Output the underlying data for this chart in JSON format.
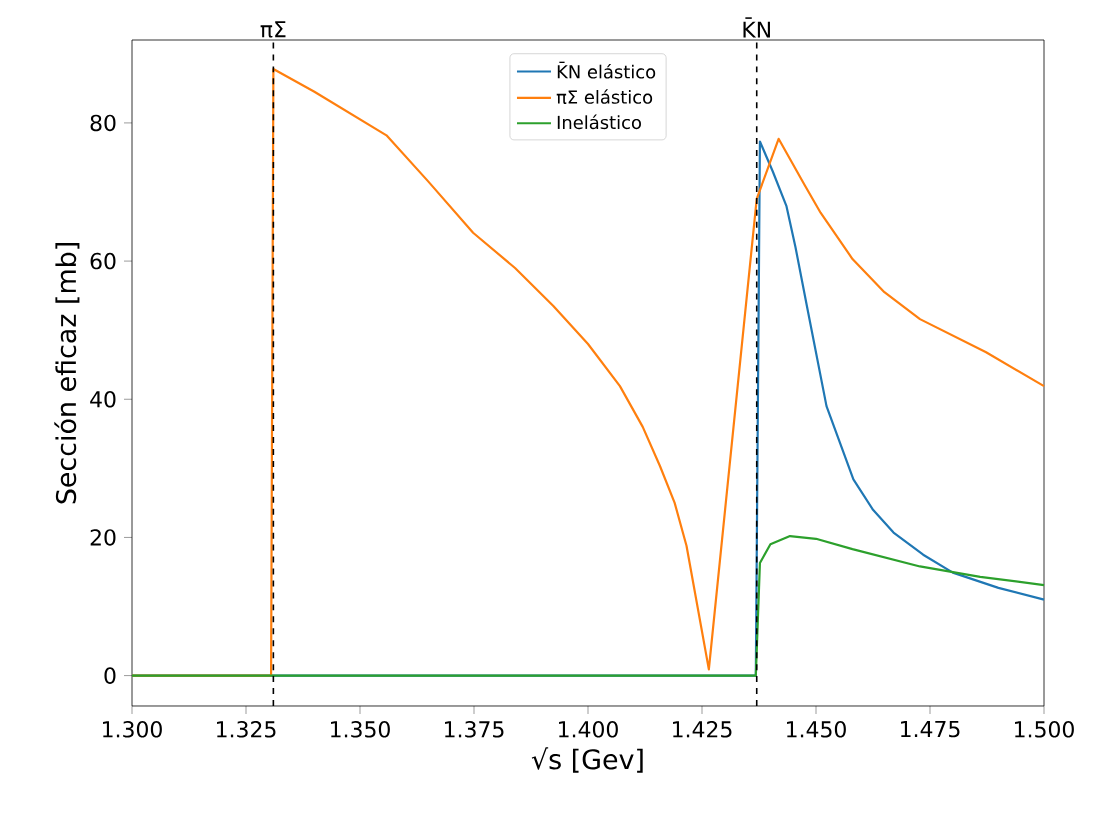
{
  "chart_data": {
    "type": "line",
    "xlabel": "√s [Gev]",
    "ylabel": "Sección eficaz [mb]",
    "xlim": [
      1.3,
      1.5
    ],
    "ylim": [
      -4.4,
      92
    ],
    "xticks": [
      {
        "value": 1.3,
        "label": "1.300"
      },
      {
        "value": 1.325,
        "label": "1.325"
      },
      {
        "value": 1.35,
        "label": "1.350"
      },
      {
        "value": 1.375,
        "label": "1.375"
      },
      {
        "value": 1.4,
        "label": "1.400"
      },
      {
        "value": 1.425,
        "label": "1.425"
      },
      {
        "value": 1.45,
        "label": "1.450"
      },
      {
        "value": 1.475,
        "label": "1.475"
      },
      {
        "value": 1.5,
        "label": "1.500"
      }
    ],
    "yticks": [
      0,
      20,
      40,
      60,
      80
    ],
    "legend": "top",
    "grid": false,
    "line_style": "solid",
    "marker": "none",
    "ref_lines": [
      {
        "axis": "x",
        "value": 1.331,
        "label": "πΣ",
        "color": "#000000",
        "line_style": "dashed"
      },
      {
        "axis": "x",
        "value": 1.437,
        "label": "K̄N",
        "color": "#000000",
        "line_style": "dashed"
      }
    ],
    "series": [
      {
        "name": "K̄N elástico",
        "color": "#1f77b4",
        "x": [
          1.3,
          1.4368,
          1.4377,
          1.4405,
          1.4435,
          1.4455,
          1.448,
          1.4523,
          1.4582,
          1.4625,
          1.467,
          1.4735,
          1.48,
          1.49,
          1.5
        ],
        "values": [
          0,
          0,
          77.3,
          73,
          68,
          62,
          53.5,
          39,
          28.4,
          24,
          20.7,
          17.5,
          14.9,
          12.7,
          11
        ]
      },
      {
        "name": "πΣ elástico",
        "color": "#ff7f0e",
        "x": [
          1.3,
          1.3305,
          1.331,
          1.34,
          1.3558,
          1.365,
          1.3748,
          1.384,
          1.3924,
          1.4,
          1.407,
          1.412,
          1.4158,
          1.419,
          1.4216,
          1.4265,
          1.437,
          1.4418,
          1.4475,
          1.451,
          1.458,
          1.465,
          1.4728,
          1.4873,
          1.5
        ],
        "values": [
          0,
          0,
          87.8,
          84.5,
          78.2,
          71.5,
          64.1,
          59,
          53.5,
          48,
          41.9,
          36,
          30.3,
          25,
          18.8,
          0.9,
          69,
          77.7,
          71,
          67,
          60.3,
          55.5,
          51.6,
          46.8,
          41.9
        ]
      },
      {
        "name": "Inelástico",
        "color": "#2ca02c",
        "x": [
          1.3,
          1.4368,
          1.4377,
          1.44,
          1.4443,
          1.45,
          1.458,
          1.4728,
          1.486,
          1.5
        ],
        "values": [
          0,
          0,
          16.3,
          19,
          20.2,
          19.8,
          18.3,
          15.8,
          14.3,
          13.1
        ]
      }
    ]
  }
}
